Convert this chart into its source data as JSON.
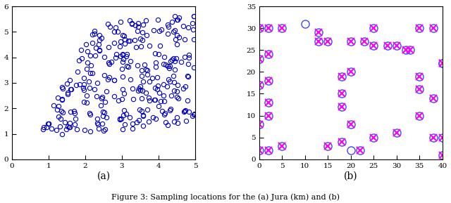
{
  "subplot_a": {
    "xlim": [
      0,
      5
    ],
    "ylim": [
      0,
      6
    ],
    "xticks": [
      0,
      1,
      2,
      3,
      4,
      5
    ],
    "yticks": [
      0,
      1,
      2,
      3,
      4,
      5,
      6
    ],
    "xlabel": "(a)",
    "marker_color": "#0000cc",
    "markersize": 4.5,
    "n_points": 359,
    "seed": 42
  },
  "subplot_b": {
    "xlim": [
      0,
      40
    ],
    "ylim": [
      0,
      35
    ],
    "xticks": [
      0,
      5,
      10,
      15,
      20,
      25,
      30,
      35,
      40
    ],
    "yticks": [
      0,
      5,
      10,
      15,
      20,
      25,
      30,
      35
    ],
    "xlabel": "(b)",
    "circle_color": "#4444ff",
    "cross_color": "#ff00ff",
    "markersize": 8,
    "circle_only": [
      [
        10,
        31
      ],
      [
        20,
        2
      ]
    ],
    "all_points": [
      [
        0,
        2
      ],
      [
        0,
        8
      ],
      [
        0,
        17
      ],
      [
        0,
        23
      ],
      [
        0,
        30
      ],
      [
        2,
        2
      ],
      [
        2,
        10
      ],
      [
        2,
        13
      ],
      [
        2,
        18
      ],
      [
        2,
        24
      ],
      [
        2,
        30
      ],
      [
        5,
        3
      ],
      [
        5,
        30
      ],
      [
        10,
        31
      ],
      [
        13,
        27
      ],
      [
        13,
        29
      ],
      [
        15,
        3
      ],
      [
        15,
        27
      ],
      [
        18,
        4
      ],
      [
        18,
        12
      ],
      [
        18,
        15
      ],
      [
        18,
        19
      ],
      [
        20,
        2
      ],
      [
        20,
        8
      ],
      [
        20,
        20
      ],
      [
        20,
        27
      ],
      [
        22,
        2
      ],
      [
        23,
        27
      ],
      [
        25,
        26
      ],
      [
        25,
        5
      ],
      [
        25,
        30
      ],
      [
        28,
        26
      ],
      [
        30,
        6
      ],
      [
        30,
        26
      ],
      [
        32,
        25
      ],
      [
        33,
        25
      ],
      [
        35,
        10
      ],
      [
        35,
        16
      ],
      [
        35,
        19
      ],
      [
        35,
        30
      ],
      [
        38,
        5
      ],
      [
        38,
        14
      ],
      [
        38,
        30
      ],
      [
        40,
        1
      ],
      [
        40,
        5
      ],
      [
        40,
        22
      ],
      [
        40,
        22
      ]
    ]
  },
  "fig_width": 6.4,
  "fig_height": 2.89,
  "dpi": 100,
  "caption": "Figure 3: Sampling locations for the (a) Jura (km) and (b)",
  "background_color": "#ffffff"
}
